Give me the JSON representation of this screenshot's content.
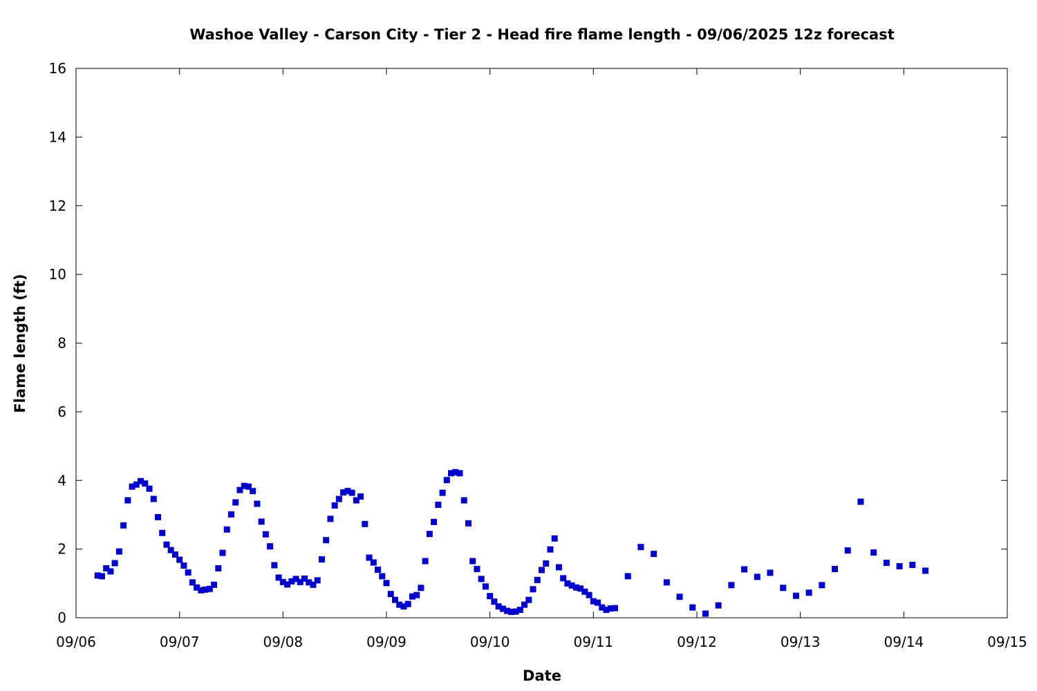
{
  "chart_data": {
    "type": "scatter",
    "title": "Washoe Valley - Carson City - Tier 2 - Head fire flame length - 09/06/2025 12z forecast",
    "xlabel": "Date",
    "ylabel": "Flame length (ft)",
    "x_ticks": [
      "09/06",
      "09/07",
      "09/08",
      "09/09",
      "09/10",
      "09/11",
      "09/12",
      "09/13",
      "09/14",
      "09/15"
    ],
    "y_ticks": [
      "0",
      "2",
      "4",
      "6",
      "8",
      "10",
      "12",
      "14",
      "16"
    ],
    "ylim": [
      0,
      16
    ],
    "grid": false,
    "legend": "none",
    "marker_color": "#0000cc",
    "series": [
      {
        "points": [
          [
            "09/06 05:00",
            1.23
          ],
          [
            "09/06 06:00",
            1.21
          ],
          [
            "09/06 07:00",
            1.44
          ],
          [
            "09/06 08:00",
            1.35
          ],
          [
            "09/06 09:00",
            1.59
          ],
          [
            "09/06 10:00",
            1.93
          ],
          [
            "09/06 11:00",
            2.69
          ],
          [
            "09/06 12:00",
            3.42
          ],
          [
            "09/06 13:00",
            3.82
          ],
          [
            "09/06 14:00",
            3.88
          ],
          [
            "09/06 15:00",
            3.98
          ],
          [
            "09/06 16:00",
            3.91
          ],
          [
            "09/06 17:00",
            3.76
          ],
          [
            "09/06 18:00",
            3.46
          ],
          [
            "09/06 19:00",
            2.93
          ],
          [
            "09/06 20:00",
            2.47
          ],
          [
            "09/06 21:00",
            2.13
          ],
          [
            "09/06 22:00",
            1.97
          ],
          [
            "09/06 23:00",
            1.84
          ],
          [
            "09/07 00:00",
            1.69
          ],
          [
            "09/07 01:00",
            1.52
          ],
          [
            "09/07 02:00",
            1.32
          ],
          [
            "09/07 03:00",
            1.03
          ],
          [
            "09/07 04:00",
            0.88
          ],
          [
            "09/07 05:00",
            0.8
          ],
          [
            "09/07 06:00",
            0.82
          ],
          [
            "09/07 07:00",
            0.84
          ],
          [
            "09/07 08:00",
            0.96
          ],
          [
            "09/07 09:00",
            1.44
          ],
          [
            "09/07 10:00",
            1.89
          ],
          [
            "09/07 11:00",
            2.57
          ],
          [
            "09/07 12:00",
            3.01
          ],
          [
            "09/07 13:00",
            3.36
          ],
          [
            "09/07 14:00",
            3.72
          ],
          [
            "09/07 15:00",
            3.84
          ],
          [
            "09/07 16:00",
            3.82
          ],
          [
            "09/07 17:00",
            3.69
          ],
          [
            "09/07 18:00",
            3.32
          ],
          [
            "09/07 19:00",
            2.8
          ],
          [
            "09/07 20:00",
            2.43
          ],
          [
            "09/07 21:00",
            2.08
          ],
          [
            "09/07 22:00",
            1.53
          ],
          [
            "09/07 23:00",
            1.17
          ],
          [
            "09/08 00:00",
            1.04
          ],
          [
            "09/08 01:00",
            0.97
          ],
          [
            "09/08 02:00",
            1.06
          ],
          [
            "09/08 03:00",
            1.13
          ],
          [
            "09/08 04:00",
            1.04
          ],
          [
            "09/08 05:00",
            1.14
          ],
          [
            "09/08 06:00",
            1.03
          ],
          [
            "09/08 07:00",
            0.96
          ],
          [
            "09/08 08:00",
            1.09
          ],
          [
            "09/08 09:00",
            1.7
          ],
          [
            "09/08 10:00",
            2.26
          ],
          [
            "09/08 11:00",
            2.88
          ],
          [
            "09/08 12:00",
            3.27
          ],
          [
            "09/08 13:00",
            3.46
          ],
          [
            "09/08 14:00",
            3.65
          ],
          [
            "09/08 15:00",
            3.69
          ],
          [
            "09/08 16:00",
            3.64
          ],
          [
            "09/08 17:00",
            3.42
          ],
          [
            "09/08 18:00",
            3.53
          ],
          [
            "09/08 19:00",
            2.73
          ],
          [
            "09/08 20:00",
            1.75
          ],
          [
            "09/08 21:00",
            1.61
          ],
          [
            "09/08 22:00",
            1.4
          ],
          [
            "09/08 23:00",
            1.21
          ],
          [
            "09/09 00:00",
            1.01
          ],
          [
            "09/09 01:00",
            0.69
          ],
          [
            "09/09 02:00",
            0.52
          ],
          [
            "09/09 03:00",
            0.38
          ],
          [
            "09/09 04:00",
            0.33
          ],
          [
            "09/09 05:00",
            0.4
          ],
          [
            "09/09 06:00",
            0.62
          ],
          [
            "09/09 07:00",
            0.66
          ],
          [
            "09/09 08:00",
            0.87
          ],
          [
            "09/09 09:00",
            1.65
          ],
          [
            "09/09 10:00",
            2.44
          ],
          [
            "09/09 11:00",
            2.79
          ],
          [
            "09/09 12:00",
            3.29
          ],
          [
            "09/09 13:00",
            3.64
          ],
          [
            "09/09 14:00",
            4.01
          ],
          [
            "09/09 15:00",
            4.21
          ],
          [
            "09/09 16:00",
            4.24
          ],
          [
            "09/09 17:00",
            4.21
          ],
          [
            "09/09 18:00",
            3.42
          ],
          [
            "09/09 19:00",
            2.75
          ],
          [
            "09/09 20:00",
            1.65
          ],
          [
            "09/09 21:00",
            1.42
          ],
          [
            "09/09 22:00",
            1.13
          ],
          [
            "09/09 23:00",
            0.91
          ],
          [
            "09/10 00:00",
            0.63
          ],
          [
            "09/10 01:00",
            0.47
          ],
          [
            "09/10 02:00",
            0.33
          ],
          [
            "09/10 03:00",
            0.26
          ],
          [
            "09/10 04:00",
            0.2
          ],
          [
            "09/10 05:00",
            0.17
          ],
          [
            "09/10 06:00",
            0.18
          ],
          [
            "09/10 07:00",
            0.23
          ],
          [
            "09/10 08:00",
            0.38
          ],
          [
            "09/10 09:00",
            0.52
          ],
          [
            "09/10 10:00",
            0.83
          ],
          [
            "09/10 11:00",
            1.1
          ],
          [
            "09/10 12:00",
            1.39
          ],
          [
            "09/10 13:00",
            1.58
          ],
          [
            "09/10 14:00",
            1.99
          ],
          [
            "09/10 15:00",
            2.31
          ],
          [
            "09/10 16:00",
            1.47
          ],
          [
            "09/10 17:00",
            1.15
          ],
          [
            "09/10 18:00",
            1.0
          ],
          [
            "09/10 19:00",
            0.94
          ],
          [
            "09/10 20:00",
            0.88
          ],
          [
            "09/10 21:00",
            0.85
          ],
          [
            "09/10 22:00",
            0.76
          ],
          [
            "09/10 23:00",
            0.66
          ],
          [
            "09/11 00:00",
            0.48
          ],
          [
            "09/11 01:00",
            0.44
          ],
          [
            "09/11 02:00",
            0.3
          ],
          [
            "09/11 03:00",
            0.23
          ],
          [
            "09/11 04:00",
            0.27
          ],
          [
            "09/11 05:00",
            0.28
          ],
          [
            "09/11 08:00",
            1.21
          ],
          [
            "09/11 11:00",
            2.06
          ],
          [
            "09/11 14:00",
            1.86
          ],
          [
            "09/11 17:00",
            1.03
          ],
          [
            "09/11 20:00",
            0.61
          ],
          [
            "09/11 23:00",
            0.3
          ],
          [
            "09/12 02:00",
            0.12
          ],
          [
            "09/12 05:00",
            0.36
          ],
          [
            "09/12 08:00",
            0.95
          ],
          [
            "09/12 11:00",
            1.41
          ],
          [
            "09/12 14:00",
            1.19
          ],
          [
            "09/12 17:00",
            1.31
          ],
          [
            "09/12 20:00",
            0.87
          ],
          [
            "09/12 23:00",
            0.64
          ],
          [
            "09/13 02:00",
            0.73
          ],
          [
            "09/13 05:00",
            0.95
          ],
          [
            "09/13 08:00",
            1.42
          ],
          [
            "09/13 11:00",
            1.96
          ],
          [
            "09/13 14:00",
            3.38
          ],
          [
            "09/13 17:00",
            1.9
          ],
          [
            "09/13 20:00",
            1.6
          ],
          [
            "09/13 23:00",
            1.5
          ],
          [
            "09/14 02:00",
            1.54
          ],
          [
            "09/14 05:00",
            1.37
          ]
        ]
      }
    ]
  }
}
